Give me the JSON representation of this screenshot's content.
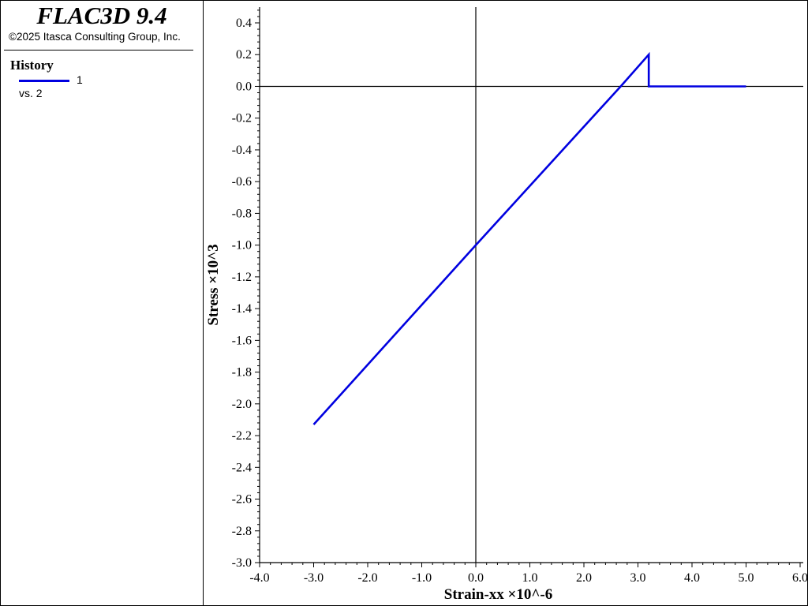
{
  "app": {
    "title": "FLAC3D 9.4",
    "copyright": "©2025 Itasca Consulting Group, Inc."
  },
  "legend": {
    "heading": "History",
    "entries": [
      {
        "label": "1",
        "color": "#0000e0",
        "vs": "vs. 2"
      }
    ]
  },
  "chart_data": {
    "type": "line",
    "xlabel": "Strain-xx ×10^-6",
    "ylabel": "Stress ×10^3",
    "xlim": [
      -4.0,
      6.0
    ],
    "ylim": [
      -3.0,
      0.5
    ],
    "xticks": [
      -4.0,
      -3.0,
      -2.0,
      -1.0,
      0.0,
      1.0,
      2.0,
      3.0,
      4.0,
      5.0,
      6.0
    ],
    "xtick_labels": [
      "-4.0",
      "-3.0",
      "-2.0",
      "-1.0",
      "0.0",
      "1.0",
      "2.0",
      "3.0",
      "4.0",
      "5.0",
      "6.0"
    ],
    "yticks": [
      0.4,
      0.2,
      0.0,
      -0.2,
      -0.4,
      -0.6,
      -0.8,
      -1.0,
      -1.2,
      -1.4,
      -1.6,
      -1.8,
      -2.0,
      -2.2,
      -2.4,
      -2.6,
      -2.8,
      -3.0
    ],
    "ytick_labels": [
      "0.4",
      "0.2",
      "0.0",
      "-0.2",
      "-0.4",
      "-0.6",
      "-0.8",
      "-1.0",
      "-1.2",
      "-1.4",
      "-1.6",
      "-1.8",
      "-2.0",
      "-2.2",
      "-2.4",
      "-2.6",
      "-2.8",
      "-3.0"
    ],
    "zero_lines": true,
    "series": [
      {
        "name": "1",
        "color": "#0000e0",
        "x": [
          -3.0,
          0.0,
          2.68,
          3.2,
          3.2,
          5.0
        ],
        "y": [
          -2.13,
          -1.0,
          0.0,
          0.2,
          0.0,
          0.0
        ]
      }
    ]
  }
}
